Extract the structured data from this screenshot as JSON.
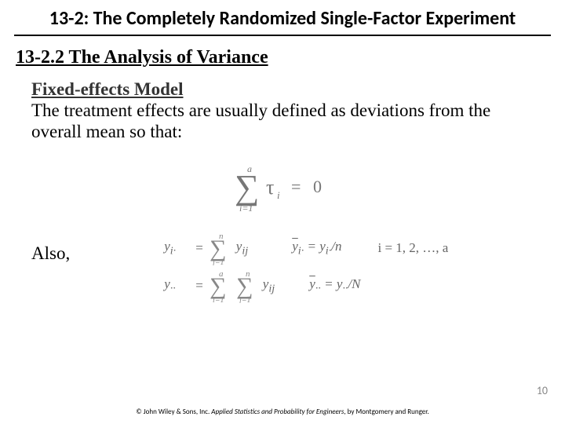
{
  "title": "13-2: The Completely Randomized Single-Factor Experiment",
  "subtitle": "13-2.2 The Analysis of Variance",
  "fixed_heading": "Fixed-effects Model",
  "body_text": "The treatment effects are usually defined as deviations from the overall mean so that:",
  "also": "Also,",
  "eq_main_svg_label": "sum i=1 to a of tau_i = 0",
  "eq1": {
    "lhs_html": "y<sub>i·</sub>",
    "eq": "=",
    "sum_lower": "j=1",
    "sum_upper": "n",
    "term": "y<sub>ij</sub>",
    "mid_html": "<span class='overline'>y</span><sub>i·</sub> = y<sub>i·</sub>/n",
    "rhs": "i = 1, 2, …, a"
  },
  "eq2": {
    "lhs_html": "y<sub>··</sub>",
    "eq": "=",
    "sum1_lower": "i=1",
    "sum1_upper": "a",
    "sum2_lower": "j=1",
    "sum2_upper": "n",
    "term": "y<sub>ij</sub>",
    "mid_html": "<span class='overline'>y</span><sub>··</sub> = y<sub>··</sub>/N"
  },
  "page_num": "10",
  "copyright_prefix": "© John Wiley & Sons, Inc.  ",
  "copyright_book": "Applied Statistics and Probability for Engineers",
  "copyright_suffix": ", by Montgomery and Runger."
}
